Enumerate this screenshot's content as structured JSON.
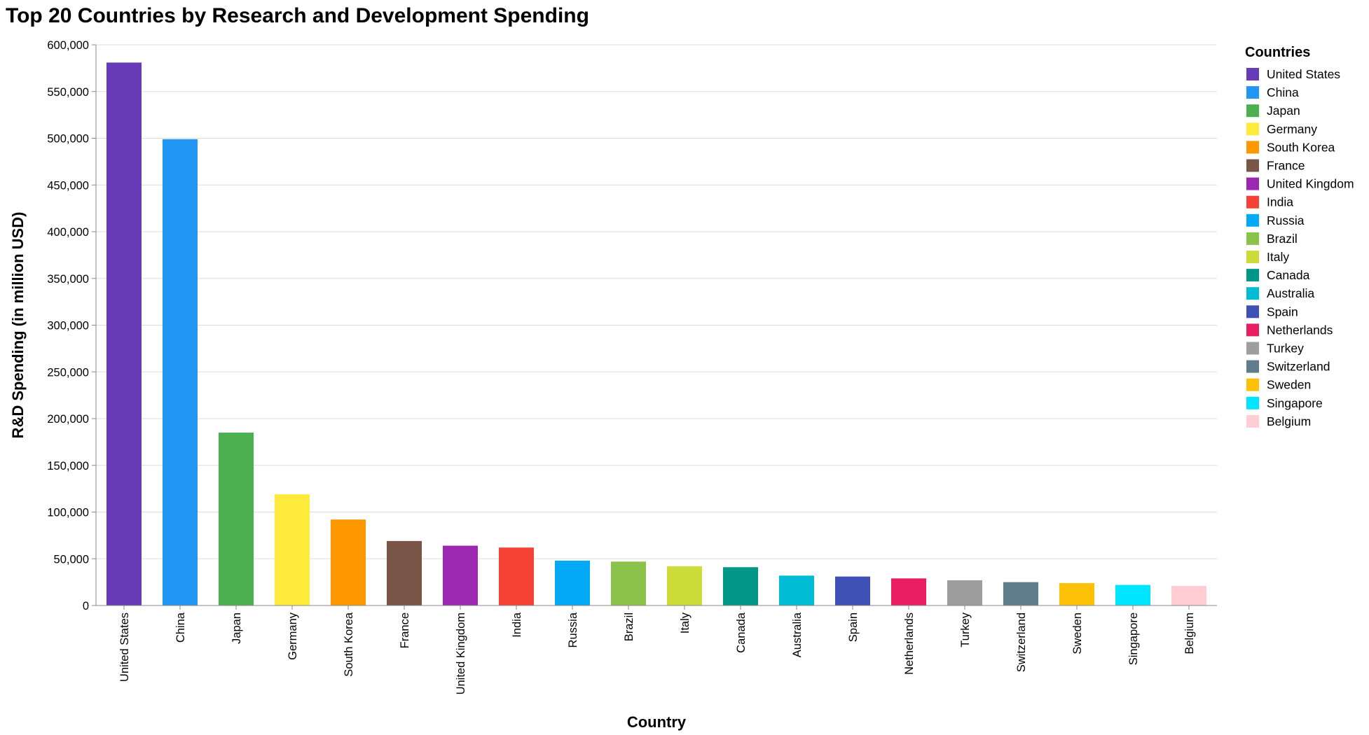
{
  "chart_data": {
    "type": "bar",
    "title": "Top 20 Countries by Research and Development Spending",
    "xlabel": "Country",
    "ylabel": "R&D Spending (in million USD)",
    "ylim": [
      0,
      600000
    ],
    "yticks": [
      0,
      50000,
      100000,
      150000,
      200000,
      250000,
      300000,
      350000,
      400000,
      450000,
      500000,
      550000,
      600000
    ],
    "ytick_labels": [
      "0",
      "50,000",
      "100,000",
      "150,000",
      "200,000",
      "250,000",
      "300,000",
      "350,000",
      "400,000",
      "450,000",
      "500,000",
      "550,000",
      "600,000"
    ],
    "grid": true,
    "legend_title": "Countries",
    "legend_position": "right",
    "categories": [
      "United States",
      "China",
      "Japan",
      "Germany",
      "South Korea",
      "France",
      "United Kingdom",
      "India",
      "Russia",
      "Brazil",
      "Italy",
      "Canada",
      "Australia",
      "Spain",
      "Netherlands",
      "Turkey",
      "Switzerland",
      "Sweden",
      "Singapore",
      "Belgium"
    ],
    "values": [
      581000,
      499000,
      185000,
      119000,
      92000,
      69000,
      64000,
      62000,
      48000,
      47000,
      42000,
      41000,
      32000,
      31000,
      29000,
      27000,
      25000,
      24000,
      22000,
      21000
    ],
    "colors": [
      "#673AB7",
      "#2196F3",
      "#4CAF50",
      "#FFEB3B",
      "#FF9800",
      "#795548",
      "#9C27B0",
      "#F44336",
      "#03A9F4",
      "#8BC34A",
      "#CDDC39",
      "#009688",
      "#00BCD4",
      "#3F51B5",
      "#E91E63",
      "#9E9E9E",
      "#607D8B",
      "#FFC107",
      "#00E5FF",
      "#FFCDD2"
    ]
  }
}
